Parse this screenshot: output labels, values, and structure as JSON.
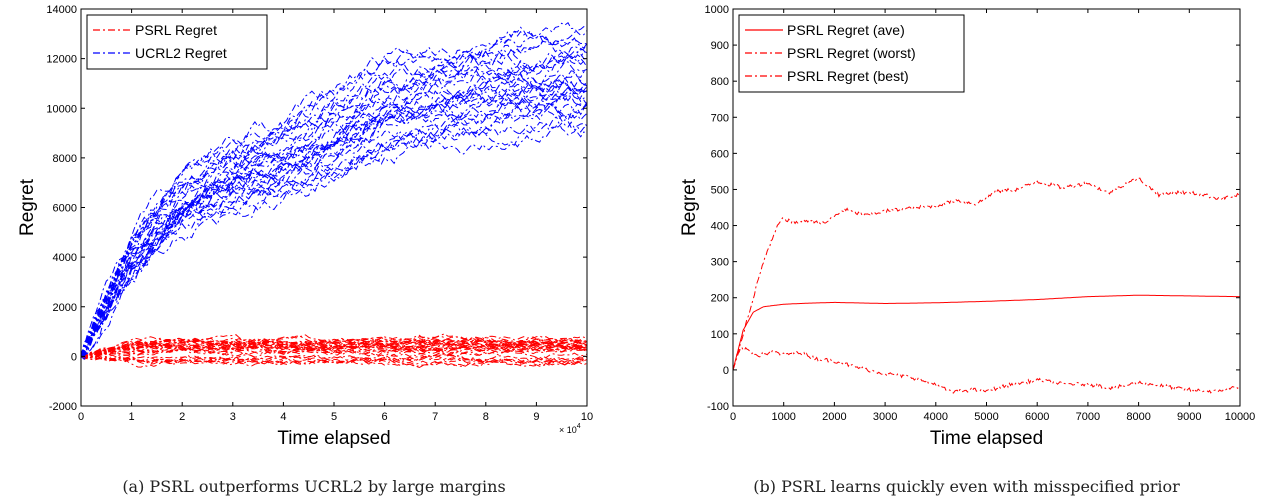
{
  "chart_data": [
    {
      "type": "line",
      "caption": "(a) PSRL outperforms UCRL2 by large margins",
      "xlabel": "Time elapsed",
      "ylabel": "Regret",
      "xlim": [
        0,
        100000
      ],
      "ylim": [
        -2000,
        14000
      ],
      "x_ticks": [
        0,
        10000,
        20000,
        30000,
        40000,
        50000,
        60000,
        70000,
        80000,
        90000,
        100000
      ],
      "x_tick_labels": [
        "0",
        "1",
        "2",
        "3",
        "4",
        "5",
        "6",
        "7",
        "8",
        "9",
        "10"
      ],
      "x_multiplier_label": "× 10",
      "x_multiplier_exp": "4",
      "y_ticks": [
        -2000,
        0,
        2000,
        4000,
        6000,
        8000,
        10000,
        12000,
        14000
      ],
      "y_tick_labels": [
        "-2000",
        "0",
        "2000",
        "4000",
        "6000",
        "8000",
        "10000",
        "12000",
        "14000"
      ],
      "grid": false,
      "legend_position": "top-left",
      "series": [
        {
          "name": "PSRL Regret",
          "color": "#ff0000",
          "style": "dashdot",
          "runs": 30,
          "final_value_range": [
            -300,
            700
          ],
          "x": [
            0,
            10000,
            20000,
            30000,
            40000,
            50000,
            60000,
            70000,
            80000,
            90000,
            100000
          ],
          "values": [
            0,
            200,
            250,
            250,
            250,
            250,
            250,
            250,
            250,
            250,
            250
          ]
        },
        {
          "name": "UCRL2 Regret",
          "color": "#0000ff",
          "style": "dashdot",
          "runs": 30,
          "final_value_range": [
            9000,
            13500
          ],
          "x": [
            0,
            10000,
            20000,
            30000,
            40000,
            50000,
            60000,
            70000,
            80000,
            90000,
            100000
          ],
          "values": [
            0,
            4000,
            6300,
            7300,
            8000,
            9000,
            10000,
            10500,
            10800,
            11000,
            11200
          ]
        }
      ]
    },
    {
      "type": "line",
      "caption": "(b) PSRL learns quickly even with misspecified prior",
      "xlabel": "Time elapsed",
      "ylabel": "Regret",
      "xlim": [
        0,
        10000
      ],
      "ylim": [
        -100,
        1000
      ],
      "x_ticks": [
        0,
        1000,
        2000,
        3000,
        4000,
        5000,
        6000,
        7000,
        8000,
        9000,
        10000
      ],
      "x_tick_labels": [
        "0",
        "1000",
        "2000",
        "3000",
        "4000",
        "5000",
        "6000",
        "7000",
        "8000",
        "9000",
        "10000"
      ],
      "y_ticks": [
        -100,
        0,
        100,
        200,
        300,
        400,
        500,
        600,
        700,
        800,
        900,
        1000
      ],
      "y_tick_labels": [
        "-100",
        "0",
        "100",
        "200",
        "300",
        "400",
        "500",
        "600",
        "700",
        "800",
        "900",
        "1000"
      ],
      "grid": false,
      "legend_position": "top-left",
      "series": [
        {
          "name": "PSRL Regret (ave)",
          "color": "#ff0000",
          "style": "solid",
          "x": [
            0,
            200,
            400,
            600,
            1000,
            1500,
            2000,
            3000,
            4000,
            5000,
            6000,
            7000,
            8000,
            9000,
            10000
          ],
          "values": [
            0,
            110,
            160,
            175,
            182,
            185,
            187,
            184,
            186,
            190,
            195,
            203,
            207,
            205,
            203
          ]
        },
        {
          "name": "PSRL Regret (worst)",
          "color": "#ff0000",
          "style": "dashdot",
          "x": [
            0,
            300,
            600,
            900,
            1000,
            1200,
            1500,
            1800,
            2200,
            2600,
            3000,
            3500,
            4000,
            4400,
            4800,
            5200,
            5600,
            6000,
            6500,
            7000,
            7400,
            7800,
            8000,
            8400,
            8800,
            9200,
            9600,
            10000
          ],
          "values": [
            0,
            150,
            300,
            405,
            420,
            408,
            415,
            405,
            445,
            428,
            440,
            448,
            455,
            470,
            460,
            495,
            500,
            522,
            505,
            518,
            490,
            520,
            530,
            485,
            492,
            488,
            475,
            485
          ]
        },
        {
          "name": "PSRL Regret (best)",
          "color": "#ff0000",
          "style": "dashdot",
          "x": [
            0,
            150,
            300,
            500,
            800,
            1000,
            1300,
            1600,
            2000,
            2500,
            3000,
            3500,
            4000,
            4300,
            4700,
            5000,
            5500,
            6000,
            6500,
            7000,
            7500,
            8000,
            8500,
            9000,
            9500,
            10000
          ],
          "values": [
            0,
            60,
            55,
            40,
            50,
            42,
            50,
            32,
            25,
            5,
            -10,
            -20,
            -40,
            -62,
            -55,
            -58,
            -40,
            -28,
            -38,
            -40,
            -50,
            -35,
            -45,
            -55,
            -60,
            -45
          ]
        }
      ]
    }
  ]
}
